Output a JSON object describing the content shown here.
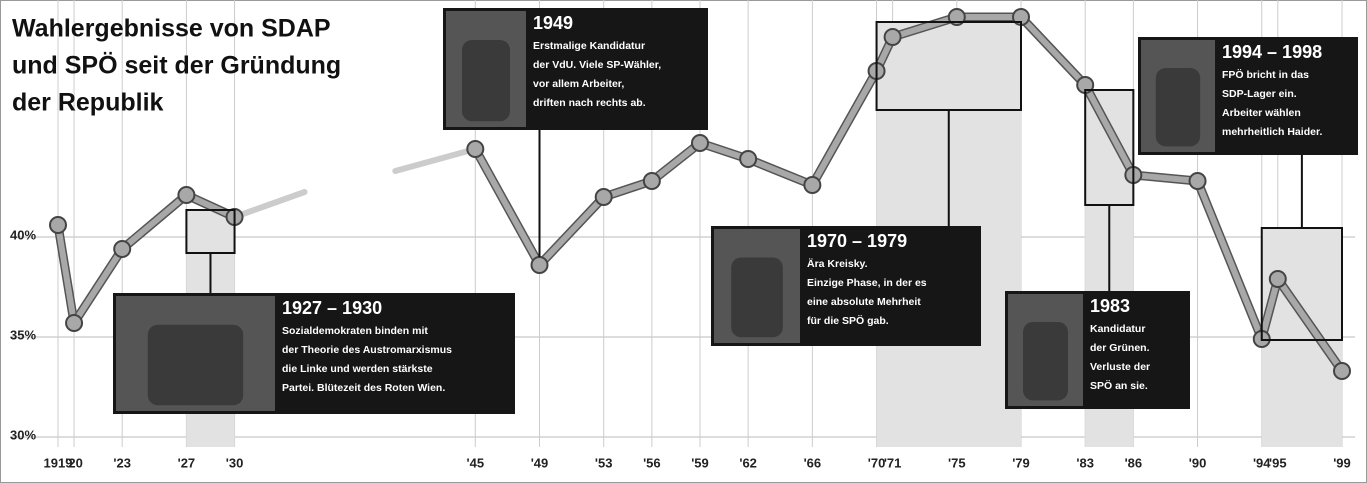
{
  "chart_data": {
    "type": "line",
    "title": [
      "Wahlergebnisse von SDAP",
      "und SPÖ seit der Gründung",
      "der Republik"
    ],
    "x": [
      1919,
      1920,
      1923,
      1927,
      1930,
      1945,
      1949,
      1953,
      1956,
      1959,
      1962,
      1966,
      1970,
      1971,
      1975,
      1979,
      1983,
      1986,
      1990,
      1994,
      1995,
      1999
    ],
    "values": [
      40.6,
      35.7,
      39.4,
      42.1,
      41.0,
      44.4,
      38.6,
      42.0,
      42.8,
      44.7,
      43.9,
      42.6,
      48.3,
      50.0,
      51.0,
      51.0,
      47.6,
      43.1,
      42.8,
      34.9,
      37.9,
      33.3
    ],
    "color": "#a8a8a8",
    "xlim": [
      1919,
      1999
    ],
    "xticks": [
      1919,
      {
        "value": 1920,
        "label": "'20"
      },
      {
        "value": 1923,
        "label": "'23"
      },
      {
        "value": 1927,
        "label": "'27"
      },
      {
        "value": 1930,
        "label": "'30"
      },
      {
        "value": 1945,
        "label": "'45"
      },
      {
        "value": 1949,
        "label": "'49"
      },
      {
        "value": 1953,
        "label": "'53"
      },
      {
        "value": 1956,
        "label": "'56"
      },
      {
        "value": 1959,
        "label": "'59"
      },
      {
        "value": 1962,
        "label": "'62"
      },
      {
        "value": 1966,
        "label": "'66"
      },
      {
        "value": 1970,
        "label": "'70"
      },
      {
        "value": 1971,
        "label": "'71"
      },
      {
        "value": 1975,
        "label": "'75"
      },
      {
        "value": 1979,
        "label": "'79"
      },
      {
        "value": 1983,
        "label": "'83"
      },
      {
        "value": 1986,
        "label": "'86"
      },
      {
        "value": 1990,
        "label": "'90"
      },
      {
        "value": 1994,
        "label": "'94"
      },
      {
        "value": 1995,
        "label": "'95"
      },
      {
        "value": 1999,
        "label": "'99"
      }
    ],
    "ylim": [
      29.5,
      51.5
    ],
    "yticks": [
      {
        "value": 30,
        "label": "30%"
      },
      {
        "value": 35,
        "label": "35%"
      },
      {
        "value": 40,
        "label": "40%"
      }
    ],
    "grid": true,
    "annotations": [
      {
        "title": "1927 – 1930",
        "lines": [
          "Sozialdemokraten binden mit",
          "der Theorie des Austromarxismus",
          "die Linke und werden stärkste",
          "Partei. Blütezeit des Roten Wien."
        ]
      },
      {
        "title": "1949",
        "lines": [
          "Erstmalige Kandidatur",
          "der VdU. Viele SP-Wähler,",
          "vor allem Arbeiter,",
          "driften nach rechts ab."
        ]
      },
      {
        "title": "1970 – 1979",
        "lines": [
          "Ära Kreisky.",
          "Einzige Phase, in der es",
          "eine absolute Mehrheit",
          "für die SPÖ gab."
        ]
      },
      {
        "title": "1983",
        "lines": [
          "Kandidatur",
          "der Grünen.",
          "Verluste der",
          "SPÖ an sie."
        ]
      },
      {
        "title": "1994 – 1998",
        "lines": [
          "FPÖ bricht in das",
          "SDP-Lager ein.",
          "Arbeiter wählen",
          "mehrheitlich Haider."
        ]
      }
    ]
  }
}
